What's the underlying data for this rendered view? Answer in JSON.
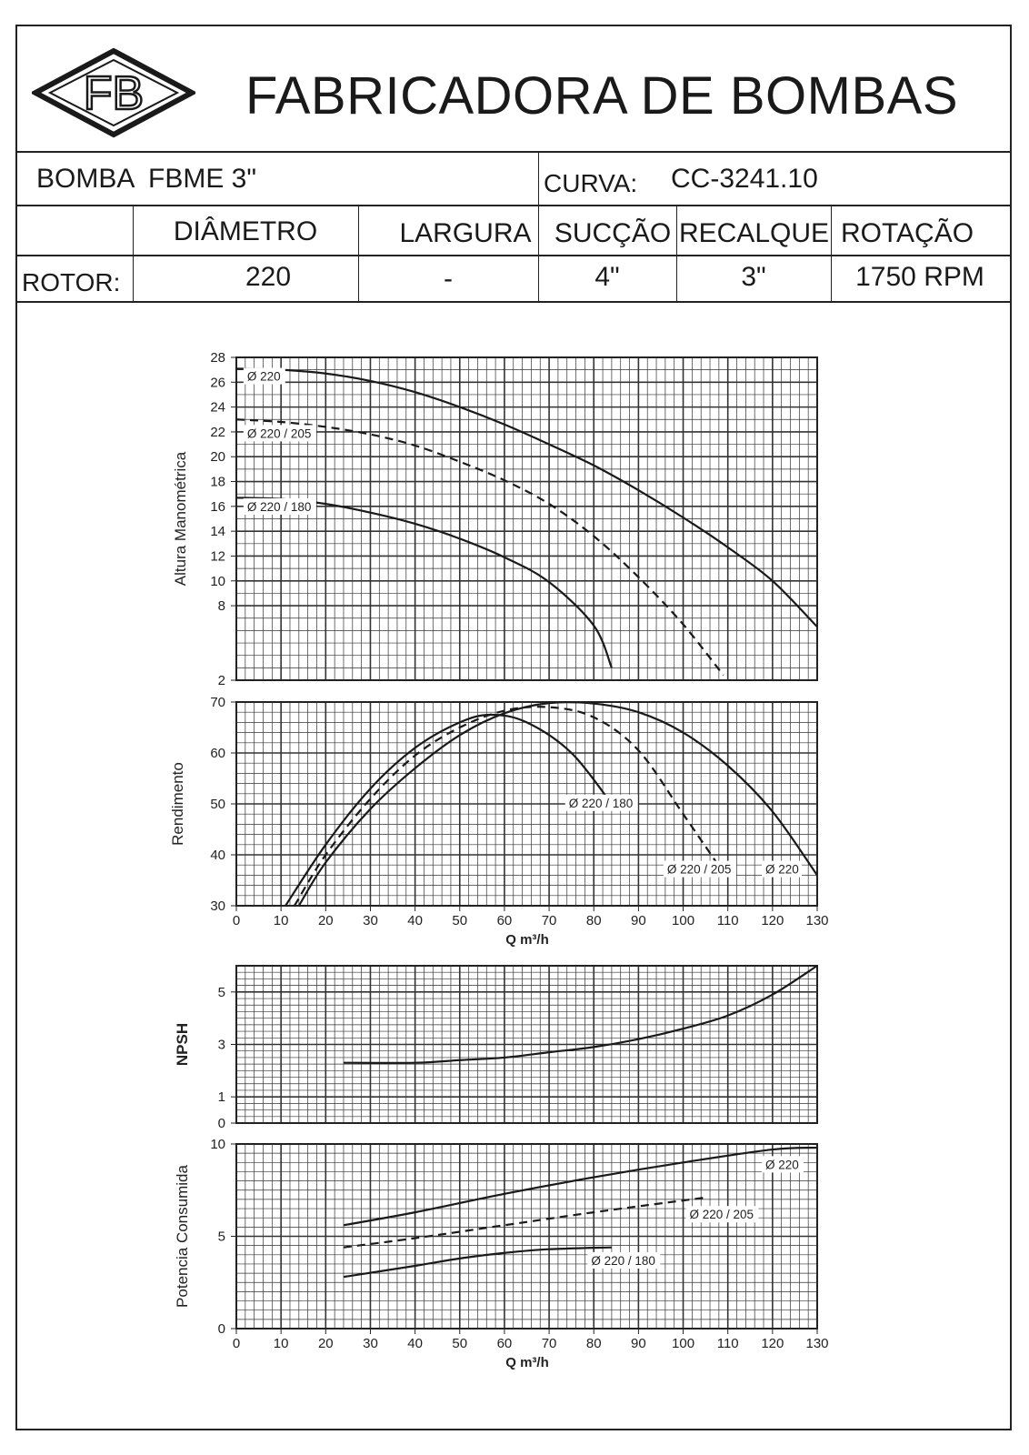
{
  "header": {
    "title": "FABRICADORA DE BOMBAS",
    "logo_text": "FB"
  },
  "pump": {
    "bomba_label": "BOMBA",
    "model": "FBME 3\"",
    "curva_label": "CURVA:",
    "curva_value": "CC-3241.10"
  },
  "specs": {
    "headers": [
      "DIÂMETRO",
      "LARGURA",
      "SUCÇÃO",
      "RECALQUE",
      "ROTAÇÃO"
    ],
    "row_label": "ROTOR:",
    "values": [
      "220",
      "-",
      "4\"",
      "3\"",
      "1750 RPM"
    ]
  },
  "chart_data": [
    {
      "type": "line",
      "id": "head",
      "ylabel": "Altura Manométrica",
      "xlim": [
        0,
        130
      ],
      "ylim": [
        2,
        28
      ],
      "yticks": [
        2,
        8,
        10,
        12,
        14,
        16,
        18,
        20,
        22,
        24,
        26,
        28
      ],
      "series": [
        {
          "name": "Ø 220",
          "style": "solid",
          "x": [
            0,
            10,
            20,
            30,
            40,
            50,
            60,
            70,
            80,
            90,
            100,
            110,
            120,
            130
          ],
          "y": [
            27.1,
            27.0,
            26.7,
            26.1,
            25.2,
            24.0,
            22.6,
            21.0,
            19.3,
            17.3,
            15.1,
            12.7,
            10.0,
            6.3
          ]
        },
        {
          "name": "Ø 220 / 205",
          "style": "dashed",
          "x": [
            0,
            10,
            20,
            30,
            40,
            50,
            60,
            70,
            80,
            90,
            100,
            109
          ],
          "y": [
            23.0,
            22.8,
            22.4,
            21.8,
            20.9,
            19.6,
            18.1,
            16.2,
            13.6,
            10.3,
            6.5,
            2.4
          ]
        },
        {
          "name": "Ø 220 / 180",
          "style": "solid",
          "x": [
            0,
            10,
            20,
            30,
            40,
            50,
            60,
            70,
            80,
            84
          ],
          "y": [
            16.7,
            16.6,
            16.2,
            15.5,
            14.6,
            13.4,
            11.9,
            9.9,
            6.4,
            3.0
          ]
        }
      ]
    },
    {
      "type": "line",
      "id": "efficiency",
      "ylabel": "Rendimento",
      "xlim": [
        0,
        130
      ],
      "ylim": [
        30,
        70
      ],
      "yticks": [
        30,
        40,
        50,
        60,
        70
      ],
      "series": [
        {
          "name": "Ø 220",
          "style": "solid",
          "x": [
            14,
            20,
            30,
            40,
            50,
            60,
            70,
            80,
            90,
            100,
            110,
            120,
            130
          ],
          "y": [
            30.0,
            38.5,
            49.0,
            57.0,
            63.5,
            67.8,
            69.8,
            69.7,
            68.0,
            64.0,
            57.5,
            48.5,
            36.0
          ]
        },
        {
          "name": "Ø 220 / 205",
          "style": "dashed",
          "x": [
            13,
            20,
            30,
            40,
            50,
            60,
            70,
            80,
            90,
            100,
            109
          ],
          "y": [
            30.0,
            40.0,
            51.0,
            59.5,
            65.0,
            68.3,
            69.0,
            67.0,
            60.5,
            48.0,
            36.5
          ]
        },
        {
          "name": "Ø 220 / 180",
          "style": "solid",
          "x": [
            11,
            20,
            30,
            40,
            50,
            57,
            65,
            75,
            84
          ],
          "y": [
            30.0,
            42.0,
            53.0,
            61.0,
            66.0,
            67.5,
            66.0,
            60.0,
            50.0
          ]
        }
      ]
    },
    {
      "type": "line",
      "id": "npsh",
      "ylabel": "NPSH",
      "xlim": [
        0,
        130
      ],
      "ylim": [
        0,
        6
      ],
      "yticks": [
        0,
        1,
        3,
        5
      ],
      "series": [
        {
          "name": "NPSH",
          "x": [
            24,
            40,
            50,
            60,
            70,
            80,
            90,
            100,
            110,
            120,
            130
          ],
          "y": [
            2.3,
            2.3,
            2.4,
            2.5,
            2.7,
            2.9,
            3.2,
            3.6,
            4.1,
            4.9,
            6.0
          ]
        }
      ]
    },
    {
      "type": "line",
      "id": "power",
      "ylabel": "Potencia Consumida",
      "xlabel": "Q m³/h",
      "xlim": [
        0,
        130
      ],
      "ylim": [
        0,
        10
      ],
      "yticks": [
        0,
        5,
        10
      ],
      "xticks": [
        0,
        10,
        20,
        30,
        40,
        50,
        60,
        70,
        80,
        90,
        100,
        110,
        120,
        130
      ],
      "series": [
        {
          "name": "Ø 220",
          "style": "solid",
          "x": [
            24,
            40,
            60,
            80,
            100,
            120,
            130
          ],
          "y": [
            5.6,
            6.3,
            7.3,
            8.2,
            9.0,
            9.7,
            9.8
          ]
        },
        {
          "name": "Ø 220 / 205",
          "style": "dashed",
          "x": [
            24,
            40,
            60,
            80,
            105
          ],
          "y": [
            4.4,
            4.9,
            5.6,
            6.3,
            7.1
          ]
        },
        {
          "name": "Ø 220 / 180",
          "style": "solid",
          "x": [
            24,
            40,
            50,
            60,
            70,
            84
          ],
          "y": [
            2.8,
            3.4,
            3.8,
            4.1,
            4.3,
            4.4
          ]
        }
      ]
    }
  ],
  "axes": {
    "xlabel": "Q m³/h",
    "xticks": [
      0,
      10,
      20,
      30,
      40,
      50,
      60,
      70,
      80,
      90,
      100,
      110,
      120,
      130
    ]
  }
}
